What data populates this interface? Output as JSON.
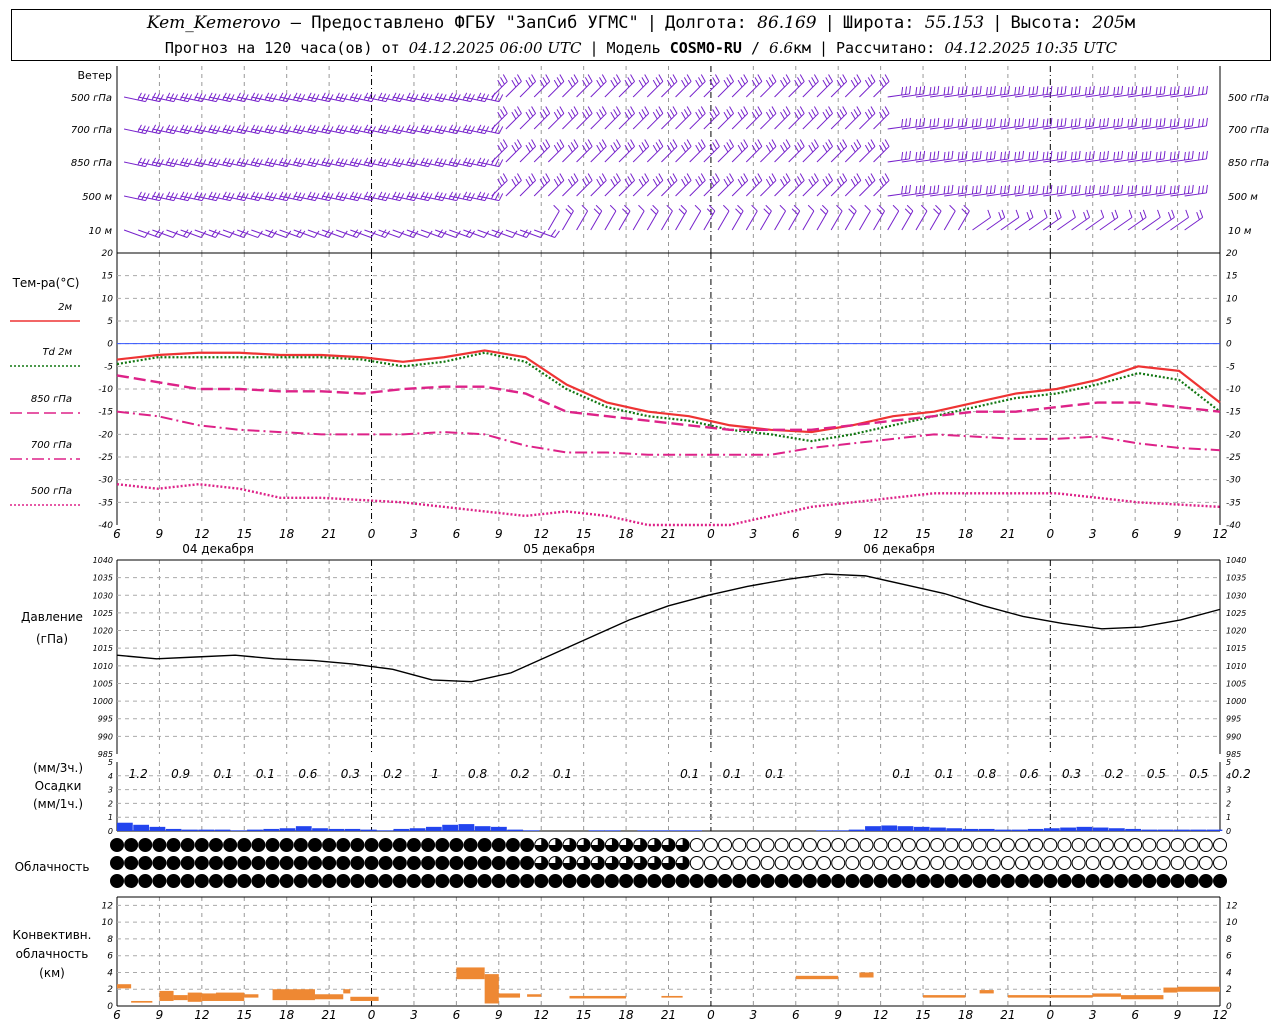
{
  "header": {
    "station": "Kem_Kemerovo",
    "provider": "— Предоставлено ФГБУ \"ЗапСиб УГМС\"",
    "lon_label": "Долгота:",
    "lon": "86.169",
    "lat_label": "Широта:",
    "lat": "55.153",
    "alt_label": "Высота:",
    "alt": "205",
    "alt_unit": "м",
    "forecast_label": "Прогноз на 120 часа(ов) от",
    "init_time": "04.12.2025 06:00 UTC",
    "model_label": "Модель",
    "model": "COSMO-RU",
    "model_res": "6.6",
    "model_res_unit": "км",
    "computed_label": "Рассчитано:",
    "computed_time": "04.12.2025 10:35 UTC"
  },
  "x_axis": {
    "hour_labels": [
      "6",
      "9",
      "12",
      "15",
      "18",
      "21",
      "0",
      "3",
      "6",
      "9",
      "12",
      "15",
      "18",
      "21",
      "0",
      "3",
      "6",
      "9",
      "12",
      "15",
      "18",
      "21",
      "0",
      "3",
      "6",
      "9",
      "12"
    ],
    "date_labels": [
      "04 декабря",
      "05 декабря",
      "06 декабря"
    ]
  },
  "wind_panel": {
    "title": "Ветер",
    "levels": [
      "500 гПа",
      "700 гПа",
      "850 гПа",
      "500 м",
      "10 м"
    ],
    "color": "#7722cc"
  },
  "temp_panel": {
    "ylabel": "Тем-ра(°C)",
    "ticks": [
      "20",
      "15",
      "10",
      "5",
      "0",
      "-5",
      "-10",
      "-15",
      "-20",
      "-25",
      "-30",
      "-35",
      "-40"
    ],
    "ylim": [
      -40,
      20
    ],
    "legend": [
      {
        "label": "2м",
        "color": "#ee3333",
        "style": "solid"
      },
      {
        "label": "Td  2м",
        "color": "#117711",
        "style": "dotted"
      },
      {
        "label": "850 гПа",
        "color": "#dd2288",
        "style": "dash"
      },
      {
        "label": "700 гПа",
        "color": "#dd2288",
        "style": "dashdot"
      },
      {
        "label": "500 гПа",
        "color": "#dd2288",
        "style": "dotted"
      }
    ]
  },
  "pressure_panel": {
    "ylabel1": "Давление",
    "ylabel2": "(гПа)",
    "ticks": [
      "1040",
      "1035",
      "1030",
      "1025",
      "1020",
      "1015",
      "1010",
      "1005",
      "1000",
      "995",
      "990",
      "985"
    ],
    "ylim": [
      985,
      1040
    ]
  },
  "precip_panel": {
    "label1": "(мм/3ч.)",
    "label2": "Осадки",
    "label3": "(мм/1ч.)",
    "ticks": [
      "5",
      "4",
      "3",
      "2",
      "1",
      "0"
    ],
    "ylim": [
      0,
      5
    ],
    "totals_3h": [
      "1.2",
      "0.9",
      "0.1",
      "0.1",
      "0.6",
      "0.3",
      "0.2",
      "1",
      "0.8",
      "0.2",
      "0.1",
      "",
      "",
      "0.1",
      "0.1",
      "0.1",
      "",
      "",
      "0.1",
      "0.1",
      "0.8",
      "0.6",
      "0.3",
      "0.2",
      "0.5",
      "0.5",
      "0.2"
    ],
    "color": "#2244ee"
  },
  "cloud_panel": {
    "label": "Облачность",
    "rows": [
      "ffffffffffffffffffffffffffffffffffffffffffffffffffffffffffffffffffffffffffffffffff77777777777777777777777777777000000000000000000000000000000000000000000000000000000000000000000000000000000000000000000000000000000000",
      "ffffffffffffffffffffffffffffffffffffffffffffffffffffffffffffffffffffffffffffffff7777777777777777777777777777777000000000000000000000000000000000000000000000000000000000000000000000000000000000000000000000000000000000",
      "ffffffffffffffffffffffffffffffffffffffffffffffffffffffffffffffffffffffffffffffffffffffffffffffffffffffffffffffffffffffffffffffffffffffffffffffffffffffffffffffffffffffffffffffffffffffffffffffffffffffffffffffffffffffffffffffffff"
    ]
  },
  "conv_panel": {
    "label1": "Конвективн.",
    "label2": "облачность",
    "label3": "(км)",
    "ticks": [
      "12",
      "10",
      "8",
      "6",
      "4",
      "2",
      "0"
    ],
    "ylim": [
      0,
      13
    ],
    "color": "#ee8833"
  },
  "chart_data": {
    "type": "line",
    "x_hours_utc": [
      6,
      9,
      12,
      15,
      18,
      21,
      0,
      3,
      6,
      9,
      12,
      15,
      18,
      21,
      0,
      3,
      6,
      9,
      12,
      15,
      18,
      21,
      0,
      3,
      6,
      9,
      12
    ],
    "series": [
      {
        "name": "2м",
        "values": [
          -3.5,
          -2.5,
          -2,
          -2,
          -2.5,
          -2.5,
          -3,
          -4,
          -3,
          -1.5,
          -3,
          -9,
          -13,
          -15,
          -16,
          -18,
          -19,
          -19.5,
          -18,
          -16,
          -15,
          -13,
          -11,
          -10,
          -8,
          -5,
          -6,
          -13
        ]
      },
      {
        "name": "Td  2м",
        "values": [
          -4.5,
          -3,
          -3,
          -3,
          -3,
          -3,
          -3.5,
          -5,
          -4,
          -2,
          -4,
          -10,
          -14,
          -16,
          -17,
          -19,
          -20,
          -21.5,
          -20,
          -18,
          -16,
          -14,
          -12,
          -11,
          -9,
          -6.5,
          -8,
          -15
        ]
      },
      {
        "name": "850 гПа",
        "values": [
          -7,
          -8.5,
          -10,
          -10,
          -10.5,
          -10.5,
          -11,
          -10,
          -9.5,
          -9.5,
          -11,
          -15,
          -16,
          -17,
          -18,
          -19,
          -19,
          -19,
          -18,
          -17,
          -16,
          -15,
          -15,
          -14,
          -13,
          -13,
          -14,
          -15
        ]
      },
      {
        "name": "700 гПа",
        "values": [
          -15,
          -16,
          -18,
          -19,
          -19.5,
          -20,
          -20,
          -20,
          -19.5,
          -20,
          -22.5,
          -24,
          -24,
          -24.5,
          -24.5,
          -24.5,
          -24.5,
          -23,
          -22,
          -21,
          -20,
          -20.5,
          -21,
          -21,
          -20.5,
          -22,
          -23,
          -23.5
        ]
      },
      {
        "name": "500 гПа",
        "values": [
          -31,
          -32,
          -31,
          -32,
          -34,
          -34,
          -34.5,
          -35,
          -36,
          -37,
          -38,
          -37,
          -38,
          -40,
          -41,
          -40,
          -38,
          -36,
          -35,
          -34,
          -33,
          -33,
          -33,
          -33,
          -34,
          -35,
          -35.5,
          -36
        ]
      },
      {
        "name": "pressure",
        "values": [
          1013,
          1012,
          1012.5,
          1013,
          1012,
          1011.5,
          1010.5,
          1009,
          1006,
          1005.5,
          1008,
          1013,
          1018,
          1023,
          1027,
          1030,
          1032.5,
          1034.5,
          1036,
          1035.5,
          1033,
          1030.5,
          1027,
          1024,
          1022,
          1020.5,
          1021,
          1023,
          1026
        ]
      },
      {
        "name": "precip_1h",
        "values": [
          0.6,
          0.45,
          0.3,
          0.15,
          0.1,
          0.1,
          0.1,
          0.05,
          0.1,
          0.15,
          0.2,
          0.35,
          0.2,
          0.15,
          0.15,
          0.1,
          0.05,
          0.15,
          0.2,
          0.3,
          0.45,
          0.5,
          0.35,
          0.3,
          0.1,
          0.05,
          0,
          0,
          0,
          0.05,
          0.05,
          0,
          0.05,
          0.05,
          0.05,
          0.05,
          0,
          0,
          0,
          0,
          0,
          0,
          0,
          0.05,
          0.05,
          0.1,
          0.35,
          0.4,
          0.35,
          0.3,
          0.25,
          0.2,
          0.15,
          0.15,
          0.1,
          0.1,
          0.15,
          0.2,
          0.25,
          0.3,
          0.25,
          0.2,
          0.15,
          0.1,
          0.1,
          0.1,
          0.1,
          0.1
        ]
      },
      {
        "name": "conv_cloud",
        "bars": [
          {
            "h0": 0,
            "h1": 2,
            "bottom": 2.1,
            "top": 2.6
          },
          {
            "h0": 2,
            "h1": 5,
            "bottom": 0.4,
            "top": 0.6
          },
          {
            "h0": 6,
            "h1": 8,
            "bottom": 0.6,
            "top": 1.8
          },
          {
            "h0": 8,
            "h1": 10,
            "bottom": 0.7,
            "top": 1.3
          },
          {
            "h0": 10,
            "h1": 12,
            "bottom": 0.5,
            "top": 1.6
          },
          {
            "h0": 12,
            "h1": 14,
            "bottom": 0.6,
            "top": 1.5
          },
          {
            "h0": 14,
            "h1": 18,
            "bottom": 0.6,
            "top": 1.6
          },
          {
            "h0": 18,
            "h1": 20,
            "bottom": 1.0,
            "top": 1.4
          },
          {
            "h0": 22,
            "h1": 28,
            "bottom": 0.7,
            "top": 2.0
          },
          {
            "h0": 28,
            "h1": 32,
            "bottom": 0.8,
            "top": 1.4
          },
          {
            "h0": 32,
            "h1": 33,
            "bottom": 1.5,
            "top": 2.0
          },
          {
            "h0": 33,
            "h1": 37,
            "bottom": 0.6,
            "top": 1.1
          },
          {
            "h0": 48,
            "h1": 52,
            "bottom": 3.2,
            "top": 4.6
          },
          {
            "h0": 52,
            "h1": 54,
            "bottom": 0.3,
            "top": 3.8
          },
          {
            "h0": 54,
            "h1": 57,
            "bottom": 1.0,
            "top": 1.5
          },
          {
            "h0": 58,
            "h1": 60,
            "bottom": 1.1,
            "top": 1.4
          },
          {
            "h0": 64,
            "h1": 72,
            "bottom": 0.9,
            "top": 1.2
          },
          {
            "h0": 77,
            "h1": 80,
            "bottom": 1.0,
            "top": 1.2
          },
          {
            "h0": 96,
            "h1": 102,
            "bottom": 3.2,
            "top": 3.6
          },
          {
            "h0": 105,
            "h1": 107,
            "bottom": 3.4,
            "top": 4.0
          },
          {
            "h0": 114,
            "h1": 120,
            "bottom": 1.0,
            "top": 1.3
          },
          {
            "h0": 122,
            "h1": 124,
            "bottom": 1.5,
            "top": 1.9
          },
          {
            "h0": 126,
            "h1": 138,
            "bottom": 1.0,
            "top": 1.3
          },
          {
            "h0": 138,
            "h1": 142,
            "bottom": 1.1,
            "top": 1.5
          },
          {
            "h0": 142,
            "h1": 148,
            "bottom": 0.8,
            "top": 1.3
          },
          {
            "h0": 148,
            "h1": 150,
            "bottom": 1.6,
            "top": 2.2
          },
          {
            "h0": 150,
            "h1": 156,
            "bottom": 1.7,
            "top": 2.3
          }
        ]
      }
    ]
  }
}
